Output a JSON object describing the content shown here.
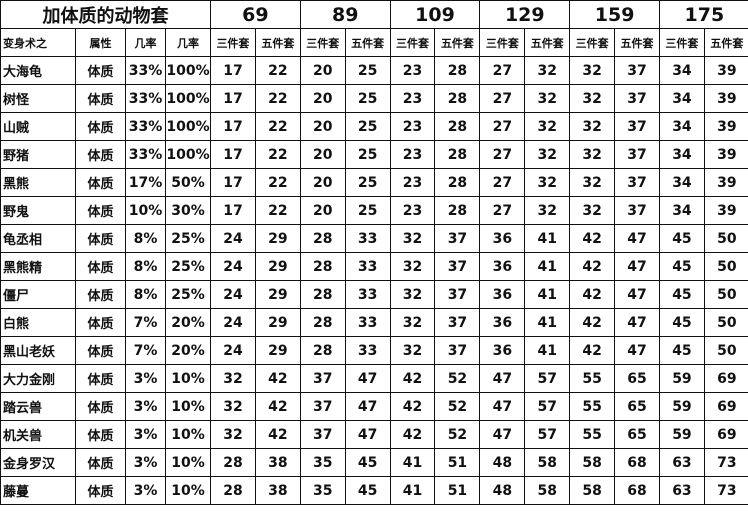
{
  "title": "加体质的动物套",
  "levels": [
    "69",
    "89",
    "109",
    "129",
    "159",
    "175"
  ],
  "subheader": [
    "变身术之",
    "属性",
    "几率",
    "几率",
    "三件套",
    "五件套",
    "三件套",
    "五件套",
    "三件套",
    "五件套",
    "三件套",
    "五件套",
    "三件套",
    "五件套",
    "三件套",
    "五件套"
  ],
  "rows": [
    [
      "大海龟",
      "体质",
      "33%",
      "100%",
      "17",
      "22",
      "20",
      "25",
      "23",
      "28",
      "27",
      "32",
      "32",
      "37",
      "34",
      "39"
    ],
    [
      "树怪",
      "体质",
      "33%",
      "100%",
      "17",
      "22",
      "20",
      "25",
      "23",
      "28",
      "27",
      "32",
      "32",
      "37",
      "34",
      "39"
    ],
    [
      "山贼",
      "体质",
      "33%",
      "100%",
      "17",
      "22",
      "20",
      "25",
      "23",
      "28",
      "27",
      "32",
      "32",
      "37",
      "34",
      "39"
    ],
    [
      "野猪",
      "体质",
      "33%",
      "100%",
      "17",
      "22",
      "20",
      "25",
      "23",
      "28",
      "27",
      "32",
      "32",
      "37",
      "34",
      "39"
    ],
    [
      "黑熊",
      "体质",
      "17%",
      "50%",
      "17",
      "22",
      "20",
      "25",
      "23",
      "28",
      "27",
      "32",
      "32",
      "37",
      "34",
      "39"
    ],
    [
      "野鬼",
      "体质",
      "10%",
      "30%",
      "17",
      "22",
      "20",
      "25",
      "23",
      "28",
      "27",
      "32",
      "32",
      "37",
      "34",
      "39"
    ],
    [
      "龟丞相",
      "体质",
      "8%",
      "25%",
      "24",
      "29",
      "28",
      "33",
      "32",
      "37",
      "36",
      "41",
      "42",
      "47",
      "45",
      "50"
    ],
    [
      "黑熊精",
      "体质",
      "8%",
      "25%",
      "24",
      "29",
      "28",
      "33",
      "32",
      "37",
      "36",
      "41",
      "42",
      "47",
      "45",
      "50"
    ],
    [
      "僵尸",
      "体质",
      "8%",
      "25%",
      "24",
      "29",
      "28",
      "33",
      "32",
      "37",
      "36",
      "41",
      "42",
      "47",
      "45",
      "50"
    ],
    [
      "白熊",
      "体质",
      "7%",
      "20%",
      "24",
      "29",
      "28",
      "33",
      "32",
      "37",
      "36",
      "41",
      "42",
      "47",
      "45",
      "50"
    ],
    [
      "黑山老妖",
      "体质",
      "7%",
      "20%",
      "24",
      "29",
      "28",
      "33",
      "32",
      "37",
      "36",
      "41",
      "42",
      "47",
      "45",
      "50"
    ],
    [
      "大力金刚",
      "体质",
      "3%",
      "10%",
      "32",
      "42",
      "37",
      "47",
      "42",
      "52",
      "47",
      "57",
      "55",
      "65",
      "59",
      "69"
    ],
    [
      "踏云兽",
      "体质",
      "3%",
      "10%",
      "32",
      "42",
      "37",
      "47",
      "42",
      "52",
      "47",
      "57",
      "55",
      "65",
      "59",
      "69"
    ],
    [
      "机关兽",
      "体质",
      "3%",
      "10%",
      "32",
      "42",
      "37",
      "47",
      "42",
      "52",
      "47",
      "57",
      "55",
      "65",
      "59",
      "69"
    ],
    [
      "金身罗汉",
      "体质",
      "3%",
      "10%",
      "28",
      "38",
      "35",
      "45",
      "41",
      "51",
      "48",
      "58",
      "58",
      "68",
      "63",
      "73"
    ],
    [
      "藤蔓",
      "体质",
      "3%",
      "10%",
      "28",
      "38",
      "35",
      "45",
      "41",
      "51",
      "48",
      "58",
      "58",
      "68",
      "63",
      "73"
    ]
  ]
}
